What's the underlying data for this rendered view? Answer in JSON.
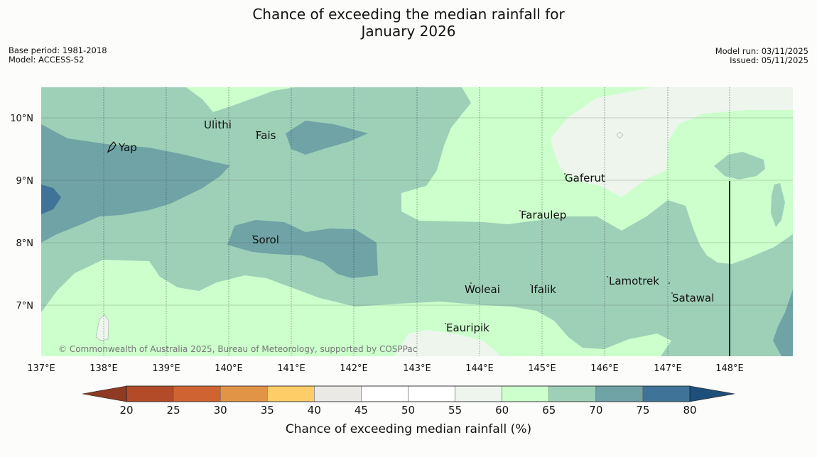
{
  "title_line1": "Chance of exceeding the median rainfall for",
  "title_line2": "January 2026",
  "meta_left": {
    "base_period": "Base period: 1981-2018",
    "model": "Model: ACCESS-S2"
  },
  "meta_right": {
    "model_run": "Model run: 03/11/2025",
    "issued": "Issued: 05/11/2025"
  },
  "places": [
    "Yap",
    "Ulithi",
    "Fais",
    "Sorol",
    "Gaferut",
    "Faraulep",
    "Woleai",
    "Ifalik",
    "Lamotrek",
    "Satawal",
    "Eauripik"
  ],
  "lon_labels": [
    "137°E",
    "138°E",
    "139°E",
    "140°E",
    "141°E",
    "142°E",
    "143°E",
    "144°E",
    "145°E",
    "146°E",
    "147°E",
    "148°E"
  ],
  "lat_labels": [
    "10°N",
    "9°N",
    "8°N",
    "7°N"
  ],
  "credit": "© Commonwealth of Australia 2025, Bureau of Meteorology, supported by COSPPac",
  "colorbar": {
    "label": "Chance of exceeding median rainfall (%)",
    "ticks": [
      "20",
      "25",
      "30",
      "35",
      "40",
      "45",
      "50",
      "55",
      "60",
      "65",
      "70",
      "75",
      "80"
    ],
    "colors": [
      "#8f3a22",
      "#b34a28",
      "#cf6432",
      "#e29446",
      "#fecd67",
      "#ebe9e5",
      "#ffffff",
      "#ffffff",
      "#edf5ec",
      "#ccffcc",
      "#9ed0b8",
      "#6fa3a5",
      "#3f7498",
      "#1e4e7a"
    ]
  }
}
